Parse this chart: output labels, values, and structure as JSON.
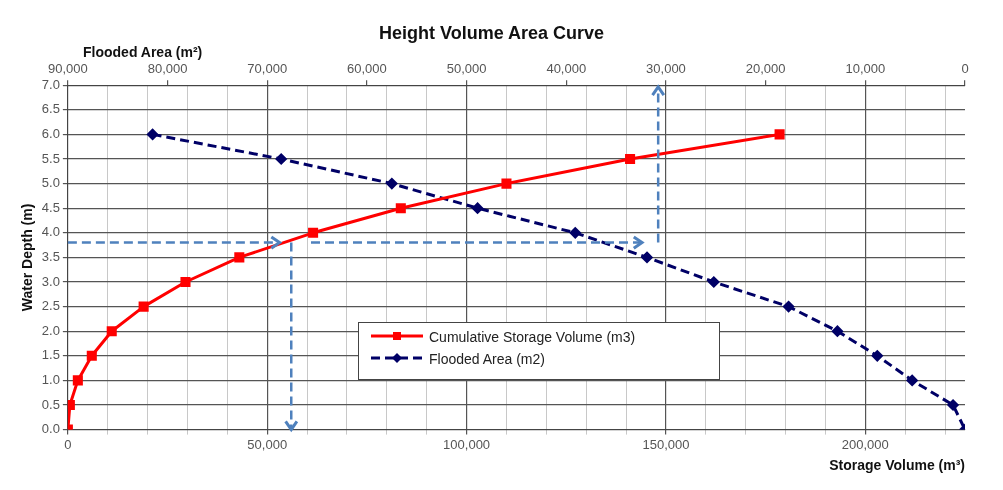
{
  "chart_data": {
    "type": "line",
    "title": "Height Volume Area Curve",
    "xlabel": "Storage Volume (m³)",
    "x2label": "Flooded Area (m²)",
    "ylabel": "Water Depth (m)",
    "xlim": [
      0,
      225000
    ],
    "xticks": [
      0,
      {
        "value": 10000,
        "label": null
      },
      {
        "value": 20000,
        "label": null
      },
      {
        "value": 30000,
        "label": null
      },
      {
        "value": 40000,
        "label": null
      },
      {
        "value": 50000,
        "label": "50,000"
      },
      {
        "value": 60000,
        "label": null
      },
      {
        "value": 70000,
        "label": null
      },
      {
        "value": 80000,
        "label": null
      },
      {
        "value": 90000,
        "label": null
      },
      {
        "value": 100000,
        "label": "100,000"
      },
      {
        "value": 110000,
        "label": null
      },
      {
        "value": 120000,
        "label": null
      },
      {
        "value": 130000,
        "label": null
      },
      {
        "value": 140000,
        "label": null
      },
      {
        "value": 150000,
        "label": "150,000"
      },
      {
        "value": 160000,
        "label": null
      },
      {
        "value": 170000,
        "label": null
      },
      {
        "value": 180000,
        "label": null
      },
      {
        "value": 190000,
        "label": null
      },
      {
        "value": 200000,
        "label": "200,000"
      },
      {
        "value": 210000,
        "label": null
      },
      {
        "value": 220000,
        "label": null
      }
    ],
    "x2lim": [
      90000,
      0
    ],
    "x2ticks": [
      {
        "value": 90000,
        "label": "90,000"
      },
      {
        "value": 80000,
        "label": "80,000"
      },
      {
        "value": 70000,
        "label": "70,000"
      },
      {
        "value": 60000,
        "label": "60,000"
      },
      {
        "value": 50000,
        "label": "50,000"
      },
      {
        "value": 40000,
        "label": "40,000"
      },
      {
        "value": 30000,
        "label": "30,000"
      },
      {
        "value": 20000,
        "label": "20,000"
      },
      {
        "value": 10000,
        "label": "10,000"
      },
      0
    ],
    "ylim": [
      0,
      7
    ],
    "yticks": [
      {
        "value": 0,
        "label": "0.0"
      },
      0.5,
      {
        "value": 1,
        "label": "1.0"
      },
      1.5,
      {
        "value": 2,
        "label": "2.0"
      },
      2.5,
      {
        "value": 3,
        "label": "3.0"
      },
      3.5,
      {
        "value": 4,
        "label": "4.0"
      },
      4.5,
      {
        "value": 5,
        "label": "5.0"
      },
      5.5,
      {
        "value": 6,
        "label": "6.0"
      },
      6.5,
      {
        "value": 7,
        "label": "7.0"
      }
    ],
    "grid": true,
    "legend": "bottom",
    "series": [
      {
        "name": "Cumulative Storage Volume (m3)",
        "color": "#ff0000",
        "marker": "square",
        "line_style": "solid",
        "x": [
          0,
          500,
          2500,
          6000,
          11000,
          19000,
          29500,
          43000,
          61500,
          83500,
          110000,
          141000,
          178500
        ],
        "values": [
          0,
          0.5,
          1,
          1.5,
          2,
          2.5,
          3,
          3.5,
          4,
          4.5,
          5,
          5.5,
          6
        ]
      },
      {
        "name": "Flooded Area (m2)",
        "color": "#000066",
        "marker": "diamond",
        "line_style": "dashed",
        "axis": "x2",
        "x": [
          81500,
          68600,
          57500,
          48900,
          39100,
          31900,
          25200,
          17700,
          12800,
          8800,
          5300,
          1200,
          0
        ],
        "values": [
          6,
          5.5,
          5,
          4.5,
          4,
          3.5,
          3,
          2.5,
          2,
          1.5,
          1,
          0.5,
          0
        ]
      }
    ]
  }
}
